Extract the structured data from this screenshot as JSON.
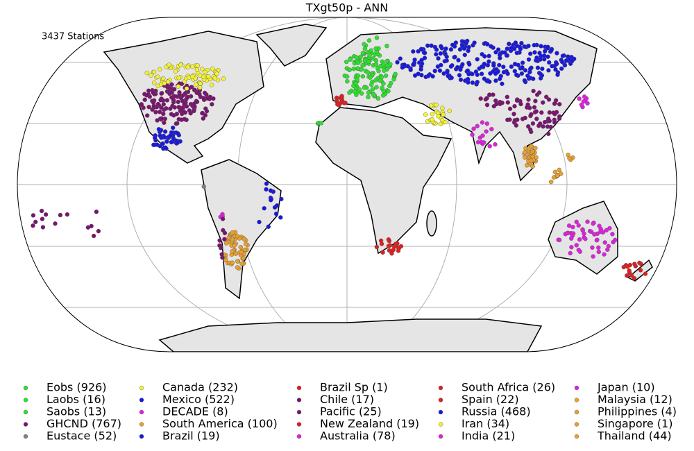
{
  "chart_data": {
    "type": "map",
    "title": "TXgt50p - ANN",
    "annotation": "3437 Stations",
    "series": [
      {
        "name": "Eobs (926)",
        "color": "#2ee02e"
      },
      {
        "name": "Laobs (16)",
        "color": "#2ee02e"
      },
      {
        "name": "Saobs (13)",
        "color": "#2ee02e"
      },
      {
        "name": "GHCND (767)",
        "color": "#7a1470"
      },
      {
        "name": "Eustace (52)",
        "color": "#808080"
      },
      {
        "name": "Canada (232)",
        "color": "#f2f230"
      },
      {
        "name": "Mexico (522)",
        "color": "#1818dd"
      },
      {
        "name": "DECADE (8)",
        "color": "#dd22dd"
      },
      {
        "name": "South America (100)",
        "color": "#e8a030"
      },
      {
        "name": "Brazil (19)",
        "color": "#1818dd"
      },
      {
        "name": "Brazil Sp (1)",
        "color": "#dd2020"
      },
      {
        "name": "Chile (17)",
        "color": "#7a1470"
      },
      {
        "name": "Pacific (25)",
        "color": "#7a1470"
      },
      {
        "name": "New Zealand (19)",
        "color": "#dd2020"
      },
      {
        "name": "Australia (78)",
        "color": "#dd22dd"
      },
      {
        "name": "South Africa (26)",
        "color": "#dd2020"
      },
      {
        "name": "Spain (22)",
        "color": "#dd2020"
      },
      {
        "name": "Russia (468)",
        "color": "#1818dd"
      },
      {
        "name": "Iran (34)",
        "color": "#f2f230"
      },
      {
        "name": "India (21)",
        "color": "#dd22dd"
      },
      {
        "name": "Japan (10)",
        "color": "#dd22dd"
      },
      {
        "name": "Malaysia (12)",
        "color": "#e8a030"
      },
      {
        "name": "Philippines (4)",
        "color": "#e8a030"
      },
      {
        "name": "Singapore (1)",
        "color": "#e8a030"
      },
      {
        "name": "Thailand (44)",
        "color": "#e8a030"
      }
    ]
  }
}
